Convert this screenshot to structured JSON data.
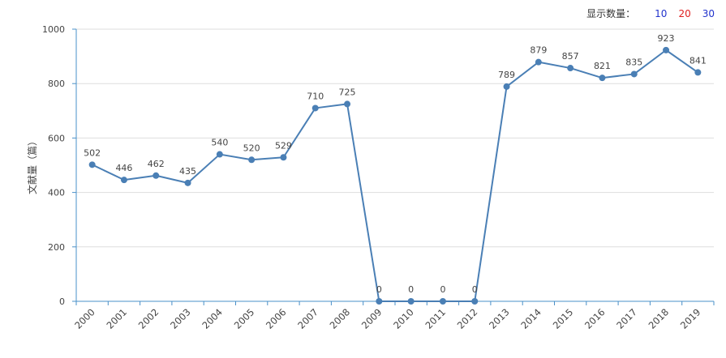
{
  "display_count": {
    "label": "显示数量：",
    "options": [
      {
        "text": "10",
        "color": "#2233cc"
      },
      {
        "text": "20",
        "color": "#e02020"
      },
      {
        "text": "30",
        "color": "#2233cc"
      }
    ]
  },
  "chart_data": {
    "type": "line",
    "ylabel": "文献量（篇）",
    "xlabel": "",
    "ylim": [
      0,
      1000
    ],
    "yticks": [
      0,
      200,
      400,
      600,
      800,
      1000
    ],
    "x": [
      "2000",
      "2001",
      "2002",
      "2003",
      "2004",
      "2005",
      "2006",
      "2007",
      "2008",
      "2009",
      "2010",
      "2011",
      "2012",
      "2013",
      "2014",
      "2015",
      "2016",
      "2017",
      "2018",
      "2019"
    ],
    "series": [
      {
        "values": [
          502,
          446,
          462,
          435,
          540,
          520,
          529,
          710,
          725,
          0,
          0,
          0,
          0,
          789,
          879,
          857,
          821,
          835,
          923,
          841
        ]
      }
    ],
    "grid": true,
    "line_color": "#4a7fb5",
    "axis_color": "#4a90c8"
  }
}
